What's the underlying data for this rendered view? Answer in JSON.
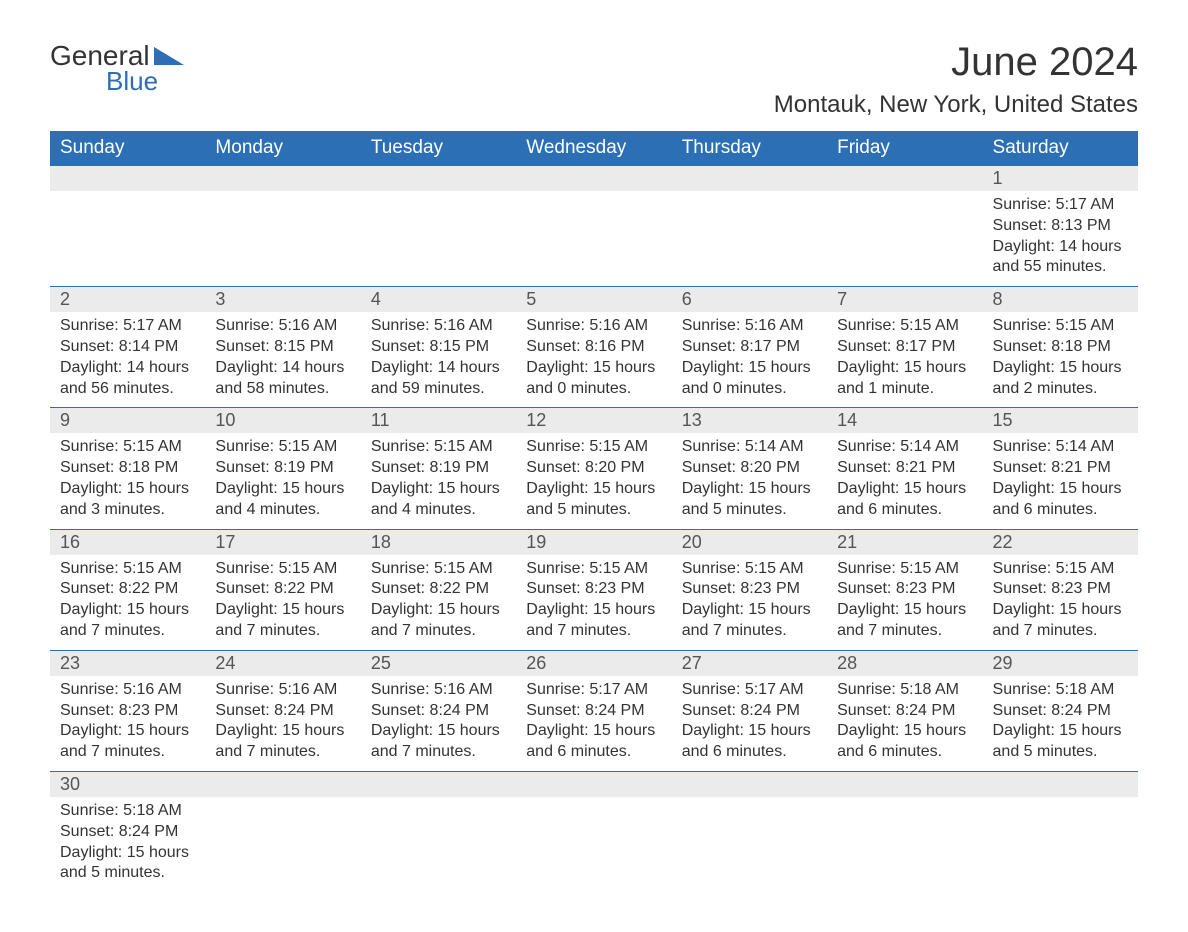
{
  "logo": {
    "general": "General",
    "blue": "Blue",
    "shape_color": "#2d6fb5"
  },
  "title": "June 2024",
  "location": "Montauk, New York, United States",
  "weekdays": [
    "Sunday",
    "Monday",
    "Tuesday",
    "Wednesday",
    "Thursday",
    "Friday",
    "Saturday"
  ],
  "colors": {
    "header_bg": "#2d6fb5",
    "header_text": "#ffffff",
    "daynum_bg": "#ebebeb",
    "text": "#333333",
    "border": "#2d6fb5"
  },
  "weeks": [
    [
      null,
      null,
      null,
      null,
      null,
      null,
      {
        "n": "1",
        "sunrise": "5:17 AM",
        "sunset": "8:13 PM",
        "daylight": "14 hours and 55 minutes."
      }
    ],
    [
      {
        "n": "2",
        "sunrise": "5:17 AM",
        "sunset": "8:14 PM",
        "daylight": "14 hours and 56 minutes."
      },
      {
        "n": "3",
        "sunrise": "5:16 AM",
        "sunset": "8:15 PM",
        "daylight": "14 hours and 58 minutes."
      },
      {
        "n": "4",
        "sunrise": "5:16 AM",
        "sunset": "8:15 PM",
        "daylight": "14 hours and 59 minutes."
      },
      {
        "n": "5",
        "sunrise": "5:16 AM",
        "sunset": "8:16 PM",
        "daylight": "15 hours and 0 minutes."
      },
      {
        "n": "6",
        "sunrise": "5:16 AM",
        "sunset": "8:17 PM",
        "daylight": "15 hours and 0 minutes."
      },
      {
        "n": "7",
        "sunrise": "5:15 AM",
        "sunset": "8:17 PM",
        "daylight": "15 hours and 1 minute."
      },
      {
        "n": "8",
        "sunrise": "5:15 AM",
        "sunset": "8:18 PM",
        "daylight": "15 hours and 2 minutes."
      }
    ],
    [
      {
        "n": "9",
        "sunrise": "5:15 AM",
        "sunset": "8:18 PM",
        "daylight": "15 hours and 3 minutes."
      },
      {
        "n": "10",
        "sunrise": "5:15 AM",
        "sunset": "8:19 PM",
        "daylight": "15 hours and 4 minutes."
      },
      {
        "n": "11",
        "sunrise": "5:15 AM",
        "sunset": "8:19 PM",
        "daylight": "15 hours and 4 minutes."
      },
      {
        "n": "12",
        "sunrise": "5:15 AM",
        "sunset": "8:20 PM",
        "daylight": "15 hours and 5 minutes."
      },
      {
        "n": "13",
        "sunrise": "5:14 AM",
        "sunset": "8:20 PM",
        "daylight": "15 hours and 5 minutes."
      },
      {
        "n": "14",
        "sunrise": "5:14 AM",
        "sunset": "8:21 PM",
        "daylight": "15 hours and 6 minutes."
      },
      {
        "n": "15",
        "sunrise": "5:14 AM",
        "sunset": "8:21 PM",
        "daylight": "15 hours and 6 minutes."
      }
    ],
    [
      {
        "n": "16",
        "sunrise": "5:15 AM",
        "sunset": "8:22 PM",
        "daylight": "15 hours and 7 minutes."
      },
      {
        "n": "17",
        "sunrise": "5:15 AM",
        "sunset": "8:22 PM",
        "daylight": "15 hours and 7 minutes."
      },
      {
        "n": "18",
        "sunrise": "5:15 AM",
        "sunset": "8:22 PM",
        "daylight": "15 hours and 7 minutes."
      },
      {
        "n": "19",
        "sunrise": "5:15 AM",
        "sunset": "8:23 PM",
        "daylight": "15 hours and 7 minutes."
      },
      {
        "n": "20",
        "sunrise": "5:15 AM",
        "sunset": "8:23 PM",
        "daylight": "15 hours and 7 minutes."
      },
      {
        "n": "21",
        "sunrise": "5:15 AM",
        "sunset": "8:23 PM",
        "daylight": "15 hours and 7 minutes."
      },
      {
        "n": "22",
        "sunrise": "5:15 AM",
        "sunset": "8:23 PM",
        "daylight": "15 hours and 7 minutes."
      }
    ],
    [
      {
        "n": "23",
        "sunrise": "5:16 AM",
        "sunset": "8:23 PM",
        "daylight": "15 hours and 7 minutes."
      },
      {
        "n": "24",
        "sunrise": "5:16 AM",
        "sunset": "8:24 PM",
        "daylight": "15 hours and 7 minutes."
      },
      {
        "n": "25",
        "sunrise": "5:16 AM",
        "sunset": "8:24 PM",
        "daylight": "15 hours and 7 minutes."
      },
      {
        "n": "26",
        "sunrise": "5:17 AM",
        "sunset": "8:24 PM",
        "daylight": "15 hours and 6 minutes."
      },
      {
        "n": "27",
        "sunrise": "5:17 AM",
        "sunset": "8:24 PM",
        "daylight": "15 hours and 6 minutes."
      },
      {
        "n": "28",
        "sunrise": "5:18 AM",
        "sunset": "8:24 PM",
        "daylight": "15 hours and 6 minutes."
      },
      {
        "n": "29",
        "sunrise": "5:18 AM",
        "sunset": "8:24 PM",
        "daylight": "15 hours and 5 minutes."
      }
    ],
    [
      {
        "n": "30",
        "sunrise": "5:18 AM",
        "sunset": "8:24 PM",
        "daylight": "15 hours and 5 minutes."
      },
      null,
      null,
      null,
      null,
      null,
      null
    ]
  ],
  "labels": {
    "sunrise": "Sunrise: ",
    "sunset": "Sunset: ",
    "daylight": "Daylight: "
  }
}
